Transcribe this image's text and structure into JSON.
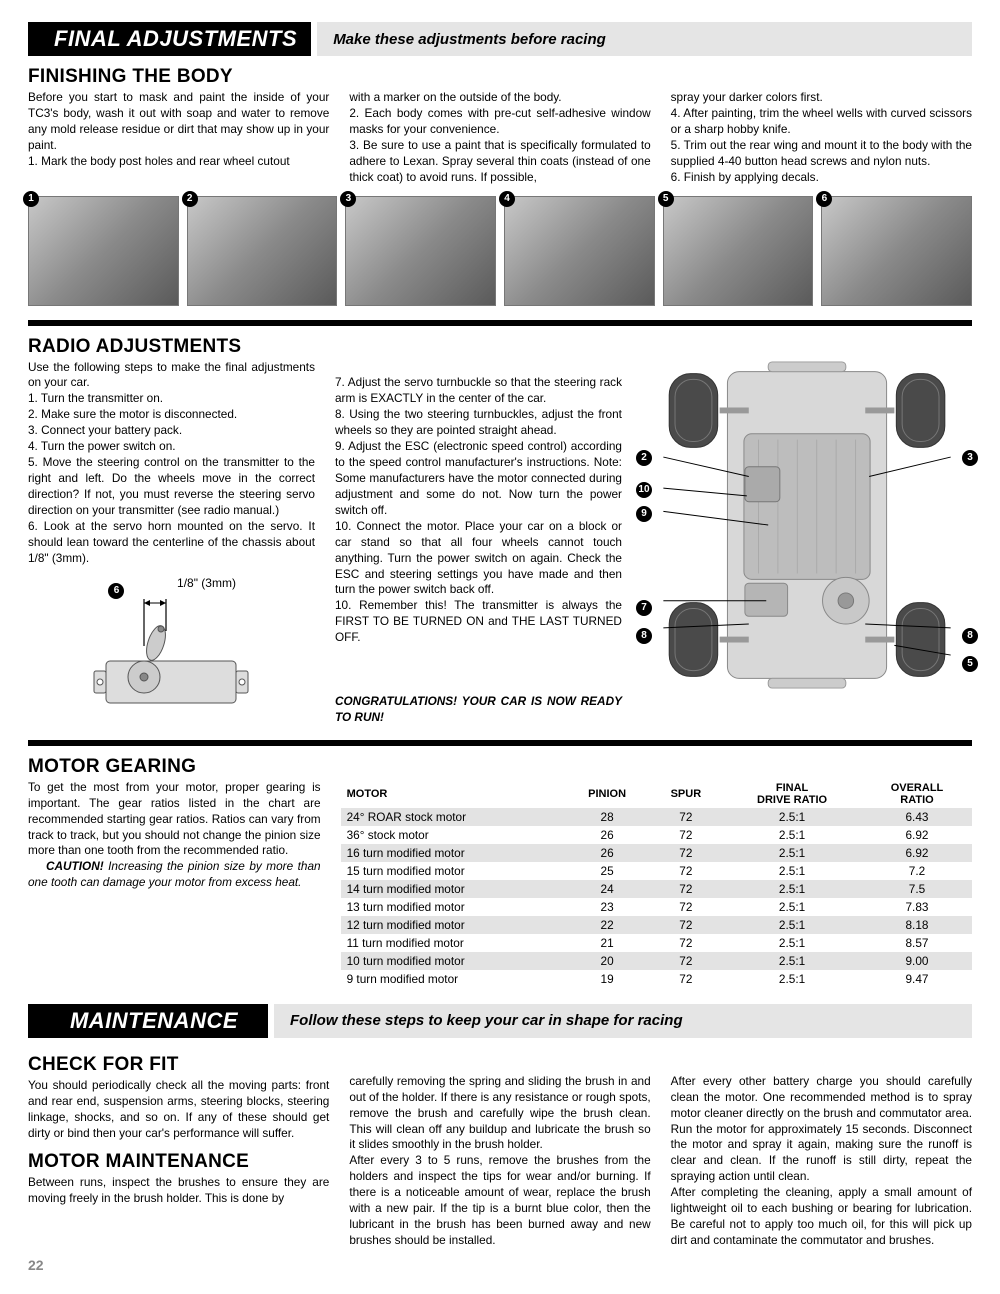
{
  "section1": {
    "tab": "FINAL ADJUSTMENTS",
    "bar": "Make these adjustments before racing",
    "h2": "FINISHING THE BODY",
    "col1": "Before you start to mask and paint the inside of your TC3's body, wash it out with soap and water to remove any mold release residue or dirt that may show up in your paint.\n1. Mark the body post holes and rear wheel cutout",
    "col2": "with a marker on the outside of the body.\n2. Each body comes with pre-cut self-adhesive window masks for your convenience.\n3. Be sure to use a paint that is specifically formulated to adhere to Lexan. Spray several thin coats (instead of one thick coat) to avoid runs. If possible,",
    "col3": "spray your darker colors first.\n4. After painting, trim the wheel wells with curved scissors or a sharp hobby knife.\n5. Trim out the rear wing and mount it to the body with the supplied 4-40 button head screws and nylon nuts.\n6. Finish by applying decals.",
    "photos": [
      "1",
      "2",
      "3",
      "4",
      "5",
      "6"
    ]
  },
  "radio": {
    "h2": "RADIO ADJUSTMENTS",
    "intro": "Use the following steps to make the final adjustments on your car.",
    "c1_items": [
      "1.  Turn the transmitter on.",
      "2.  Make sure the motor is disconnected.",
      "3.  Connect your battery pack.",
      "4.  Turn the power switch on.",
      "5. Move the steering control on the transmitter to the right and left. Do the wheels move in the correct direction? If not, you must reverse the steering servo direction on your transmitter (see radio manual.)",
      "6.  Look at the servo horn mounted on the servo. It should lean toward the centerline of the chassis about 1/8\" (3mm)."
    ],
    "servo_label": "1/8\" (3mm)",
    "servo_num": "6",
    "c2": "7.  Adjust the servo turnbuckle so that the steering rack arm is EXACTLY in the center of the car.\n8. Using the two steering turnbuckles, adjust the front wheels so they are pointed straight ahead.\n9.  Adjust the ESC (electronic speed control) according to the speed control manufacturer's instructions. Note: Some manufacturers have the motor connected during adjustment and some do not. Now turn the power switch off.\n10.  Connect the motor. Place your car on a block or car stand so that all four wheels cannot touch anything. Turn the power switch on again. Check the ESC and steering settings you have made and then turn the power switch back off.\n10.  Remember this! The transmitter is always the FIRST TO BE TURNED ON and THE LAST TURNED OFF.",
    "congrats": "CONGRATULATIONS! YOUR CAR IS NOW READY TO RUN!",
    "callouts": [
      "2",
      "3",
      "5",
      "7",
      "8",
      "8",
      "9",
      "10"
    ]
  },
  "gearing": {
    "h2": "MOTOR GEARING",
    "text": "To get the most from your motor, proper gearing is important. The gear ratios listed in the chart are recommended starting gear ratios. Ratios can vary from track to track, but you should not change the pinion size more than one tooth from the recommended ratio.",
    "caution_label": "CAUTION!",
    "caution": " Increasing the pinion size by more than one tooth can damage your motor from excess heat.",
    "headers": [
      "MOTOR",
      "PINION",
      "SPUR",
      "FINAL\nDRIVE RATIO",
      "OVERALL\nRATIO"
    ],
    "rows": [
      [
        "24° ROAR stock motor",
        "28",
        "72",
        "2.5:1",
        "6.43"
      ],
      [
        "36° stock motor",
        "26",
        "72",
        "2.5:1",
        "6.92"
      ],
      [
        "16 turn modified motor",
        "26",
        "72",
        "2.5:1",
        "6.92"
      ],
      [
        "15 turn modified motor",
        "25",
        "72",
        "2.5:1",
        "7.2"
      ],
      [
        "14 turn modified motor",
        "24",
        "72",
        "2.5:1",
        "7.5"
      ],
      [
        "13 turn modified motor",
        "23",
        "72",
        "2.5:1",
        "7.83"
      ],
      [
        "12 turn modified motor",
        "22",
        "72",
        "2.5:1",
        "8.18"
      ],
      [
        "11 turn modified motor",
        "21",
        "72",
        "2.5:1",
        "8.57"
      ],
      [
        "10 turn modified motor",
        "20",
        "72",
        "2.5:1",
        "9.00"
      ],
      [
        "9 turn modified motor",
        "19",
        "72",
        "2.5:1",
        "9.47"
      ]
    ]
  },
  "maint": {
    "tab": "MAINTENANCE",
    "bar": "Follow these steps to keep your car in shape for racing",
    "h2a": "CHECK FOR FIT",
    "c1a": "You should periodically check all the moving parts: front and rear end, suspension arms, steering blocks, steering linkage, shocks, and so on. If any of these should get dirty or bind then your car's performance will suffer.",
    "h2b": "MOTOR MAINTENANCE",
    "c1b": "Between runs, inspect the brushes to ensure they are moving freely in the brush holder. This is done by",
    "c2": "carefully removing the spring and sliding the brush in and out of the holder. If there is any resistance or rough spots, remove the brush and carefully wipe the brush clean. This will clean off any buildup and lubricate the brush so it slides smoothly in the brush holder.\n      After every 3 to 5 runs, remove the brushes from the holders and inspect the tips for wear and/or burning. If there is a noticeable amount of wear, replace the brush with a new pair. If the tip is a burnt blue color, then the lubricant in the brush has been burned away and new brushes should be installed.",
    "c3": "      After every other battery charge you should carefully clean the motor. One recommended method is to spray motor cleaner directly on the brush and commutator area. Run the motor for approximately 15 seconds. Disconnect the motor and spray it again, making sure the runoff is clear and clean. If the runoff is still dirty, repeat the spraying action until clean.\n      After completing the cleaning, apply a small amount of lightweight oil to each bushing or bearing for lubrication. Be careful not to apply too much oil, for this will pick up dirt and contaminate the commutator and brushes."
  },
  "page": "22"
}
